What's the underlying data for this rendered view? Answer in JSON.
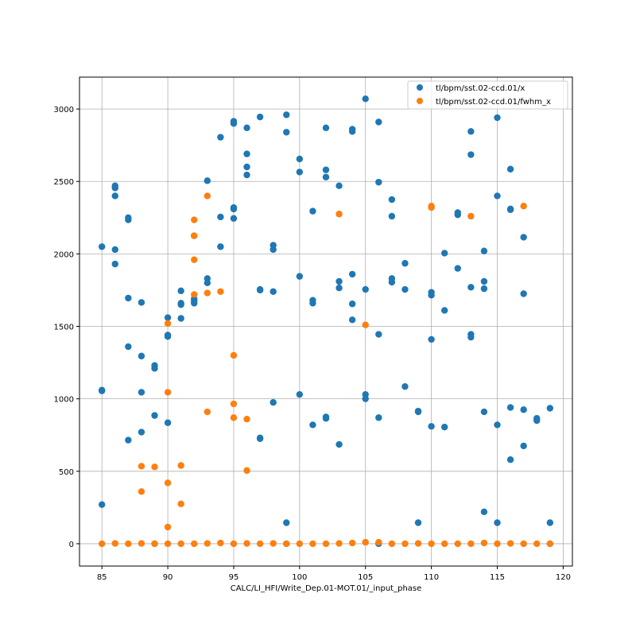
{
  "chart_data": {
    "type": "scatter",
    "title": "",
    "xlabel": "CALC/LI_HFI/Write_Dep.01-MOT.01/_input_phase",
    "ylabel": "",
    "xlim": [
      83.3,
      120.7
    ],
    "ylim": [
      -154,
      3220
    ],
    "xticks": [
      85,
      90,
      95,
      100,
      105,
      110,
      115,
      120
    ],
    "yticks": [
      0,
      500,
      1000,
      1500,
      2000,
      2500,
      3000
    ],
    "grid": true,
    "legend_position": "top-right",
    "series": [
      {
        "name": "tl/bpm/sst.02-ccd.01/x",
        "color": "#1f77b4",
        "points": [
          [
            85,
            2050
          ],
          [
            85,
            1055
          ],
          [
            85,
            1060
          ],
          [
            85,
            270
          ],
          [
            86,
            2470
          ],
          [
            86,
            2455
          ],
          [
            86,
            2400
          ],
          [
            86,
            2030
          ],
          [
            86,
            1930
          ],
          [
            87,
            2250
          ],
          [
            87,
            2235
          ],
          [
            87,
            1695
          ],
          [
            87,
            1360
          ],
          [
            87,
            715
          ],
          [
            88,
            1665
          ],
          [
            88,
            1295
          ],
          [
            88,
            1045
          ],
          [
            88,
            770
          ],
          [
            89,
            1230
          ],
          [
            89,
            1210
          ],
          [
            89,
            885
          ],
          [
            89,
            0
          ],
          [
            90,
            1560
          ],
          [
            90,
            1440
          ],
          [
            90,
            1430
          ],
          [
            90,
            835
          ],
          [
            91,
            1745
          ],
          [
            91,
            1660
          ],
          [
            91,
            1650
          ],
          [
            91,
            1555
          ],
          [
            92,
            2125
          ],
          [
            92,
            1690
          ],
          [
            92,
            1675
          ],
          [
            92,
            1660
          ],
          [
            93,
            2505
          ],
          [
            93,
            1830
          ],
          [
            93,
            1800
          ],
          [
            94,
            2805
          ],
          [
            94,
            2255
          ],
          [
            94,
            2050
          ],
          [
            95,
            2915
          ],
          [
            95,
            2900
          ],
          [
            95,
            2320
          ],
          [
            95,
            2310
          ],
          [
            95,
            2245
          ],
          [
            96,
            2870
          ],
          [
            96,
            2690
          ],
          [
            96,
            2600
          ],
          [
            96,
            2545
          ],
          [
            97,
            2945
          ],
          [
            97,
            1755
          ],
          [
            97,
            1750
          ],
          [
            97,
            730
          ],
          [
            97,
            725
          ],
          [
            98,
            2060
          ],
          [
            98,
            2030
          ],
          [
            98,
            1740
          ],
          [
            98,
            975
          ],
          [
            99,
            2960
          ],
          [
            99,
            2840
          ],
          [
            99,
            145
          ],
          [
            99,
            0
          ],
          [
            100,
            2655
          ],
          [
            100,
            2565
          ],
          [
            100,
            1845
          ],
          [
            100,
            1030
          ],
          [
            101,
            2295
          ],
          [
            101,
            1680
          ],
          [
            101,
            1660
          ],
          [
            101,
            820
          ],
          [
            102,
            2870
          ],
          [
            102,
            2580
          ],
          [
            102,
            2530
          ],
          [
            102,
            875
          ],
          [
            102,
            865
          ],
          [
            103,
            2470
          ],
          [
            103,
            1810
          ],
          [
            103,
            1765
          ],
          [
            103,
            685
          ],
          [
            104,
            2860
          ],
          [
            104,
            2845
          ],
          [
            104,
            1860
          ],
          [
            104,
            1655
          ],
          [
            104,
            1545
          ],
          [
            105,
            3070
          ],
          [
            105,
            1755
          ],
          [
            105,
            1030
          ],
          [
            105,
            1000
          ],
          [
            106,
            2910
          ],
          [
            106,
            2495
          ],
          [
            106,
            1445
          ],
          [
            106,
            870
          ],
          [
            106,
            0
          ],
          [
            107,
            2375
          ],
          [
            107,
            2260
          ],
          [
            107,
            1830
          ],
          [
            107,
            1805
          ],
          [
            108,
            1935
          ],
          [
            108,
            1755
          ],
          [
            108,
            1085
          ],
          [
            109,
            915
          ],
          [
            109,
            910
          ],
          [
            109,
            145
          ],
          [
            110,
            1735
          ],
          [
            110,
            1715
          ],
          [
            110,
            1410
          ],
          [
            110,
            810
          ],
          [
            111,
            2005
          ],
          [
            111,
            1610
          ],
          [
            111,
            805
          ],
          [
            112,
            2285
          ],
          [
            112,
            2270
          ],
          [
            112,
            1900
          ],
          [
            113,
            2845
          ],
          [
            113,
            2685
          ],
          [
            113,
            1770
          ],
          [
            113,
            1445
          ],
          [
            113,
            1425
          ],
          [
            114,
            2020
          ],
          [
            114,
            1810
          ],
          [
            114,
            1760
          ],
          [
            114,
            910
          ],
          [
            114,
            220
          ],
          [
            115,
            2940
          ],
          [
            115,
            2400
          ],
          [
            115,
            820
          ],
          [
            115,
            145
          ],
          [
            116,
            2585
          ],
          [
            116,
            2310
          ],
          [
            116,
            2305
          ],
          [
            116,
            940
          ],
          [
            116,
            580
          ],
          [
            117,
            2115
          ],
          [
            117,
            1725
          ],
          [
            117,
            925
          ],
          [
            117,
            675
          ],
          [
            118,
            865
          ],
          [
            118,
            850
          ],
          [
            119,
            935
          ],
          [
            119,
            145
          ],
          [
            119,
            0
          ]
        ]
      },
      {
        "name": "tl/bpm/sst.02-ccd.01/fwhm_x",
        "color": "#ff7f0e",
        "points": [
          [
            85,
            0
          ],
          [
            86,
            2
          ],
          [
            87,
            0
          ],
          [
            88,
            2
          ],
          [
            89,
            0
          ],
          [
            90,
            0
          ],
          [
            91,
            0
          ],
          [
            92,
            0
          ],
          [
            93,
            2
          ],
          [
            94,
            5
          ],
          [
            95,
            0
          ],
          [
            96,
            2
          ],
          [
            97,
            0
          ],
          [
            98,
            2
          ],
          [
            99,
            0
          ],
          [
            100,
            0
          ],
          [
            101,
            0
          ],
          [
            102,
            0
          ],
          [
            103,
            2
          ],
          [
            104,
            5
          ],
          [
            105,
            10
          ],
          [
            106,
            10
          ],
          [
            107,
            0
          ],
          [
            108,
            0
          ],
          [
            109,
            2
          ],
          [
            110,
            0
          ],
          [
            111,
            0
          ],
          [
            112,
            0
          ],
          [
            113,
            0
          ],
          [
            114,
            5
          ],
          [
            115,
            0
          ],
          [
            116,
            2
          ],
          [
            117,
            0
          ],
          [
            118,
            0
          ],
          [
            119,
            0
          ],
          [
            88,
            535
          ],
          [
            88,
            360
          ],
          [
            89,
            530
          ],
          [
            90,
            1520
          ],
          [
            90,
            1045
          ],
          [
            90,
            420
          ],
          [
            90,
            115
          ],
          [
            91,
            540
          ],
          [
            91,
            275
          ],
          [
            92,
            2235
          ],
          [
            92,
            2125
          ],
          [
            92,
            1960
          ],
          [
            92,
            1720
          ],
          [
            93,
            2400
          ],
          [
            93,
            1730
          ],
          [
            93,
            910
          ],
          [
            94,
            1740
          ],
          [
            95,
            1300
          ],
          [
            95,
            965
          ],
          [
            95,
            870
          ],
          [
            96,
            860
          ],
          [
            96,
            505
          ],
          [
            103,
            2275
          ],
          [
            105,
            1510
          ],
          [
            110,
            2330
          ],
          [
            110,
            2320
          ],
          [
            113,
            2260
          ],
          [
            117,
            2330
          ]
        ]
      }
    ]
  }
}
